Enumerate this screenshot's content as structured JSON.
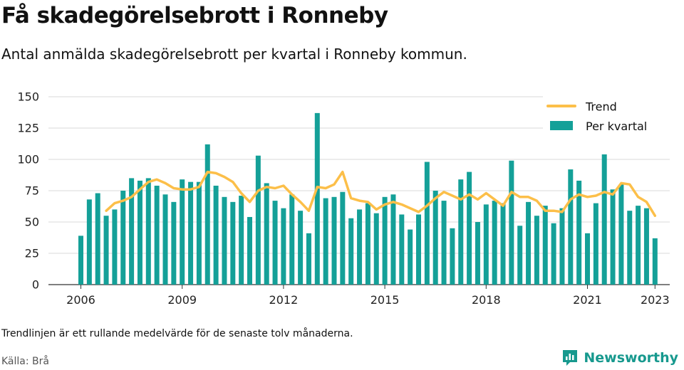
{
  "header": {
    "title": "Få skadegörelsebrott i Ronneby",
    "subtitle": "Antal anmälda skadegörelsebrott per kvartal i Ronneby kommun."
  },
  "footer": {
    "note": "Trendlinjen är ett rullande medelvärde för de senaste tolv månaderna.",
    "source": "Källa: Brå",
    "brand": "Newsworthy"
  },
  "colors": {
    "bars": "#14a098",
    "trend": "#fcbf49",
    "grid": "#d9d9d9",
    "brand": "#17998e"
  },
  "chart_data": {
    "type": "bar",
    "title": "Få skadegörelsebrott i Ronneby",
    "subtitle": "Antal anmälda skadegörelsebrott per kvartal i Ronneby kommun.",
    "xlabel": "",
    "ylabel": "",
    "ylim": [
      0,
      150
    ],
    "yticks": [
      0,
      25,
      50,
      75,
      100,
      125,
      150
    ],
    "xticks": [
      "2006",
      "2009",
      "2012",
      "2015",
      "2018",
      "2021",
      "2023"
    ],
    "grid": true,
    "legend_position": "top-right",
    "categories": [
      "2006 Q1",
      "2006 Q2",
      "2006 Q3",
      "2006 Q4",
      "2007 Q1",
      "2007 Q2",
      "2007 Q3",
      "2007 Q4",
      "2008 Q1",
      "2008 Q2",
      "2008 Q3",
      "2008 Q4",
      "2009 Q1",
      "2009 Q2",
      "2009 Q3",
      "2009 Q4",
      "2010 Q1",
      "2010 Q2",
      "2010 Q3",
      "2010 Q4",
      "2011 Q1",
      "2011 Q2",
      "2011 Q3",
      "2011 Q4",
      "2012 Q1",
      "2012 Q2",
      "2012 Q3",
      "2012 Q4",
      "2013 Q1",
      "2013 Q2",
      "2013 Q3",
      "2013 Q4",
      "2014 Q1",
      "2014 Q2",
      "2014 Q3",
      "2014 Q4",
      "2015 Q1",
      "2015 Q2",
      "2015 Q3",
      "2015 Q4",
      "2016 Q1",
      "2016 Q2",
      "2016 Q3",
      "2016 Q4",
      "2017 Q1",
      "2017 Q2",
      "2017 Q3",
      "2017 Q4",
      "2018 Q1",
      "2018 Q2",
      "2018 Q3",
      "2018 Q4",
      "2019 Q1",
      "2019 Q2",
      "2019 Q3",
      "2019 Q4",
      "2020 Q1",
      "2020 Q2",
      "2020 Q3",
      "2020 Q4",
      "2021 Q1",
      "2021 Q2",
      "2021 Q3",
      "2021 Q4",
      "2022 Q1",
      "2022 Q2",
      "2022 Q3",
      "2022 Q4",
      "2023 Q1"
    ],
    "series": [
      {
        "name": "Per kvartal",
        "type": "bar",
        "values": [
          39,
          68,
          73,
          55,
          60,
          75,
          85,
          83,
          85,
          79,
          72,
          66,
          84,
          82,
          82,
          112,
          79,
          70,
          66,
          71,
          54,
          103,
          81,
          67,
          61,
          72,
          59,
          41,
          137,
          69,
          70,
          74,
          53,
          60,
          65,
          57,
          70,
          72,
          56,
          44,
          56,
          98,
          75,
          67,
          45,
          84,
          90,
          50,
          64,
          67,
          65,
          99,
          47,
          66,
          55,
          63,
          49,
          61,
          92,
          83,
          41,
          65,
          104,
          76,
          80,
          59,
          63,
          61,
          37
        ]
      },
      {
        "name": "Trend",
        "type": "line",
        "values": [
          null,
          null,
          null,
          59,
          65,
          67,
          70,
          76,
          82,
          84,
          81,
          77,
          76,
          76,
          78,
          90,
          89,
          86,
          82,
          73,
          66,
          75,
          78,
          77,
          79,
          72,
          66,
          59,
          78,
          77,
          80,
          90,
          69,
          67,
          66,
          60,
          64,
          66,
          64,
          61,
          58,
          63,
          69,
          74,
          71,
          68,
          72,
          68,
          73,
          68,
          63,
          74,
          70,
          70,
          67,
          59,
          59,
          58,
          68,
          72,
          70,
          71,
          74,
          72,
          81,
          80,
          70,
          66,
          55
        ]
      }
    ]
  }
}
